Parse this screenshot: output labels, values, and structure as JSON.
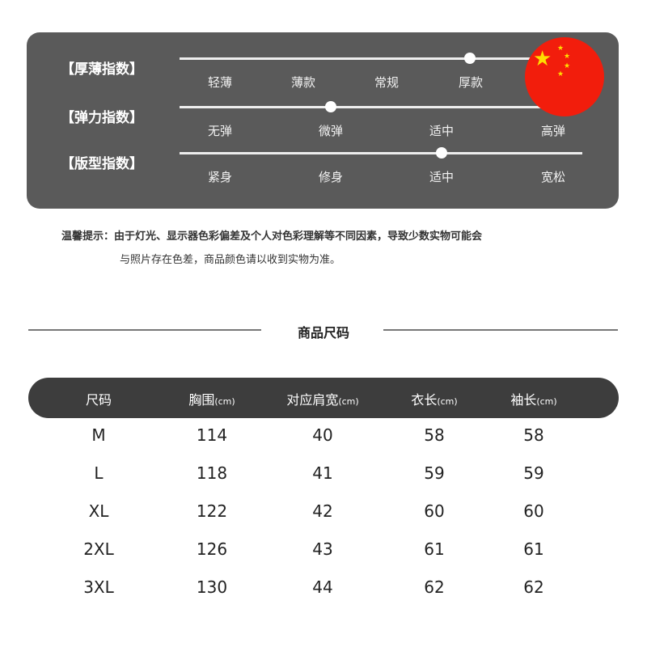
{
  "indices": [
    {
      "label": "【厚薄指数】",
      "options": [
        "轻薄",
        "薄款",
        "常规",
        "厚款"
      ],
      "level": 0.72
    },
    {
      "label": "【弹力指数】",
      "options": [
        "无弹",
        "微弹",
        "适中",
        "高弹"
      ],
      "level": 0.375
    },
    {
      "label": "【版型指数】",
      "options": [
        "紧身",
        "修身",
        "适中",
        "宽松"
      ],
      "level": 0.65
    }
  ],
  "flag_icon": "china-flag",
  "colors": {
    "panel": "#5a5a5a",
    "header": "#3d3d3d",
    "flag": "#f21d0c",
    "star": "#ffde00"
  },
  "note": {
    "line1": "温馨提示：由于灯光、显示器色彩偏差及个人对色彩理解等不同因素，导致少数实物可能会",
    "line2": "与照片存在色差，商品颜色请以收到实物为准。"
  },
  "section_title": "商品尺码",
  "table": {
    "headers": [
      {
        "name": "尺码",
        "unit": ""
      },
      {
        "name": "胸围",
        "unit": "(cm)"
      },
      {
        "name": "对应肩宽",
        "unit": "(cm)"
      },
      {
        "name": "衣长",
        "unit": "(cm)"
      },
      {
        "name": "袖长",
        "unit": "(cm)"
      }
    ],
    "rows": [
      [
        "M",
        "114",
        "40",
        "58",
        "58"
      ],
      [
        "L",
        "118",
        "41",
        "59",
        "59"
      ],
      [
        "XL",
        "122",
        "42",
        "60",
        "60"
      ],
      [
        "2XL",
        "126",
        "43",
        "61",
        "61"
      ],
      [
        "3XL",
        "130",
        "44",
        "62",
        "62"
      ]
    ]
  }
}
